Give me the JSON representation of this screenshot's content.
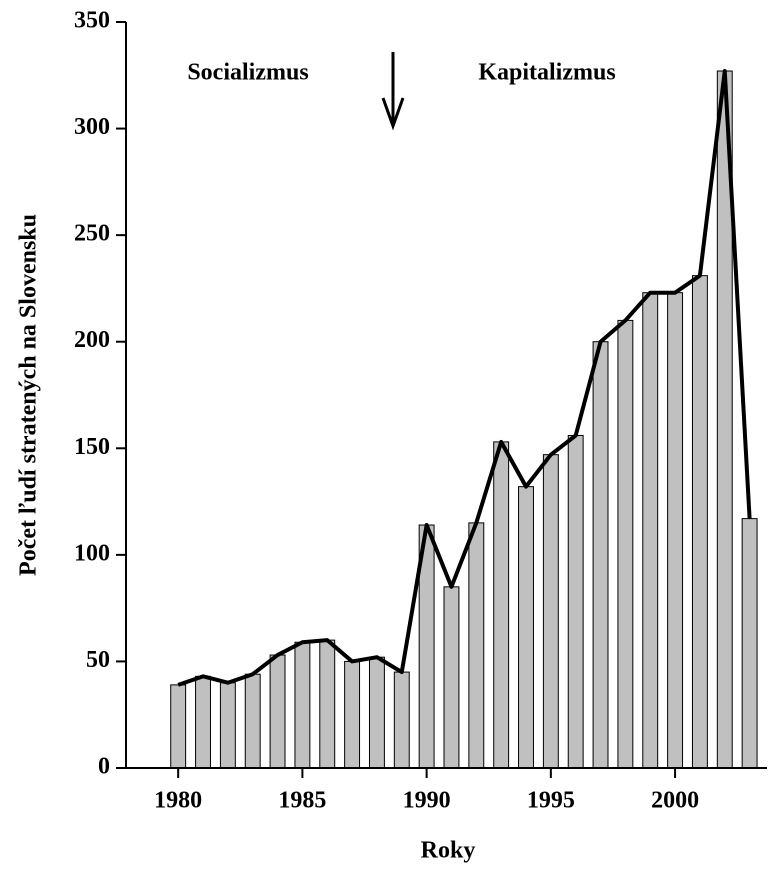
{
  "chart_data": {
    "type": "bar_line",
    "x_label": "Roky",
    "y_label": "Počet  ľudí stratených na Slovensku",
    "annotations": [
      "Socializmus",
      "Kapitalizmus"
    ],
    "x": [
      1980,
      1981,
      1982,
      1983,
      1984,
      1985,
      1986,
      1987,
      1988,
      1989,
      1990,
      1991,
      1992,
      1993,
      1994,
      1995,
      1996,
      1997,
      1998,
      1999,
      2000,
      2001,
      2002,
      2003
    ],
    "values": [
      39,
      43,
      40,
      44,
      53,
      59,
      60,
      50,
      52,
      45,
      114,
      85,
      115,
      153,
      132,
      147,
      156,
      200,
      210,
      223,
      223,
      231,
      327,
      117
    ],
    "bar_color": "#c0c0c0",
    "line_color": "#000000",
    "xlim": [
      1977.9,
      2003.7
    ],
    "xticks": [
      1980,
      1985,
      1990,
      1995,
      2000
    ],
    "ylim": [
      0,
      350
    ],
    "yticks": [
      0,
      50,
      100,
      150,
      200,
      250,
      300,
      350
    ],
    "grid": false
  }
}
